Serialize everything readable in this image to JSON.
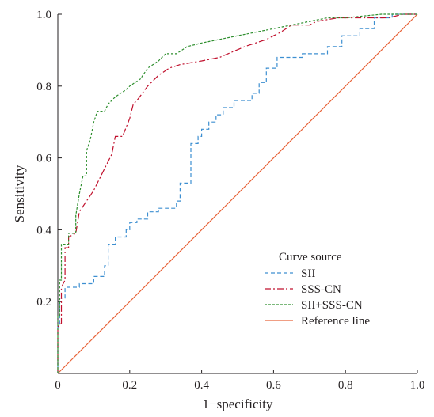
{
  "chart_data": {
    "type": "line",
    "title": "",
    "xlabel": "1−specificity",
    "ylabel": "Sensitivity",
    "xlim": [
      0,
      1
    ],
    "ylim": [
      0,
      1
    ],
    "x_ticks": [
      "0",
      "0.2",
      "0.4",
      "0.6",
      "0.8",
      "1.0"
    ],
    "y_ticks": [
      "0.2",
      "0.4",
      "0.6",
      "0.8",
      "1.0"
    ],
    "x_tick_values": [
      0,
      0.2,
      0.4,
      0.6,
      0.8,
      1.0
    ],
    "y_tick_values": [
      0.2,
      0.4,
      0.6,
      0.8,
      1.0
    ],
    "grid": false,
    "legend_title": "Curve source",
    "legend_position": "bottom-right",
    "series": [
      {
        "name": "SII",
        "color": "#3d8fd1",
        "dash": "dashed",
        "points": [
          [
            0,
            0
          ],
          [
            0,
            0.13
          ],
          [
            0.005,
            0.13
          ],
          [
            0.005,
            0.21
          ],
          [
            0.02,
            0.21
          ],
          [
            0.02,
            0.24
          ],
          [
            0.06,
            0.24
          ],
          [
            0.06,
            0.25
          ],
          [
            0.1,
            0.25
          ],
          [
            0.1,
            0.27
          ],
          [
            0.13,
            0.27
          ],
          [
            0.13,
            0.3
          ],
          [
            0.14,
            0.3
          ],
          [
            0.14,
            0.36
          ],
          [
            0.16,
            0.36
          ],
          [
            0.16,
            0.38
          ],
          [
            0.19,
            0.38
          ],
          [
            0.19,
            0.4
          ],
          [
            0.2,
            0.4
          ],
          [
            0.2,
            0.42
          ],
          [
            0.22,
            0.42
          ],
          [
            0.22,
            0.43
          ],
          [
            0.25,
            0.43
          ],
          [
            0.25,
            0.45
          ],
          [
            0.28,
            0.45
          ],
          [
            0.28,
            0.46
          ],
          [
            0.33,
            0.46
          ],
          [
            0.33,
            0.48
          ],
          [
            0.34,
            0.48
          ],
          [
            0.34,
            0.53
          ],
          [
            0.37,
            0.53
          ],
          [
            0.37,
            0.64
          ],
          [
            0.39,
            0.64
          ],
          [
            0.39,
            0.66
          ],
          [
            0.4,
            0.66
          ],
          [
            0.4,
            0.68
          ],
          [
            0.42,
            0.68
          ],
          [
            0.42,
            0.7
          ],
          [
            0.44,
            0.7
          ],
          [
            0.44,
            0.72
          ],
          [
            0.46,
            0.72
          ],
          [
            0.46,
            0.74
          ],
          [
            0.49,
            0.74
          ],
          [
            0.49,
            0.76
          ],
          [
            0.54,
            0.76
          ],
          [
            0.54,
            0.78
          ],
          [
            0.56,
            0.78
          ],
          [
            0.56,
            0.81
          ],
          [
            0.58,
            0.81
          ],
          [
            0.58,
            0.85
          ],
          [
            0.61,
            0.85
          ],
          [
            0.61,
            0.88
          ],
          [
            0.68,
            0.88
          ],
          [
            0.68,
            0.89
          ],
          [
            0.75,
            0.89
          ],
          [
            0.75,
            0.91
          ],
          [
            0.79,
            0.91
          ],
          [
            0.79,
            0.94
          ],
          [
            0.84,
            0.94
          ],
          [
            0.84,
            0.96
          ],
          [
            0.88,
            0.96
          ],
          [
            0.88,
            0.99
          ],
          [
            0.93,
            0.99
          ],
          [
            0.93,
            1.0
          ],
          [
            1.0,
            1.0
          ]
        ]
      },
      {
        "name": "SSS-CN",
        "color": "#c0102d",
        "dash": "dash-dot",
        "points": [
          [
            0,
            0
          ],
          [
            0,
            0.13
          ],
          [
            0.01,
            0.14
          ],
          [
            0.01,
            0.24
          ],
          [
            0.02,
            0.26
          ],
          [
            0.02,
            0.35
          ],
          [
            0.03,
            0.35
          ],
          [
            0.03,
            0.38
          ],
          [
            0.05,
            0.39
          ],
          [
            0.06,
            0.45
          ],
          [
            0.08,
            0.48
          ],
          [
            0.1,
            0.51
          ],
          [
            0.13,
            0.57
          ],
          [
            0.15,
            0.61
          ],
          [
            0.16,
            0.66
          ],
          [
            0.18,
            0.66
          ],
          [
            0.2,
            0.71
          ],
          [
            0.21,
            0.75
          ],
          [
            0.22,
            0.76
          ],
          [
            0.25,
            0.8
          ],
          [
            0.28,
            0.83
          ],
          [
            0.31,
            0.85
          ],
          [
            0.34,
            0.86
          ],
          [
            0.4,
            0.87
          ],
          [
            0.45,
            0.88
          ],
          [
            0.52,
            0.91
          ],
          [
            0.58,
            0.93
          ],
          [
            0.6,
            0.94
          ],
          [
            0.62,
            0.95
          ],
          [
            0.65,
            0.97
          ],
          [
            0.7,
            0.97
          ],
          [
            0.72,
            0.98
          ],
          [
            0.78,
            0.99
          ],
          [
            0.92,
            0.99
          ],
          [
            0.96,
            1.0
          ],
          [
            1.0,
            1.0
          ]
        ]
      },
      {
        "name": "SII+SSS-CN",
        "color": "#2f8f2f",
        "dash": "dotted",
        "points": [
          [
            0,
            0
          ],
          [
            0,
            0.16
          ],
          [
            0.005,
            0.16
          ],
          [
            0.005,
            0.26
          ],
          [
            0.01,
            0.26
          ],
          [
            0.01,
            0.36
          ],
          [
            0.03,
            0.36
          ],
          [
            0.03,
            0.39
          ],
          [
            0.05,
            0.39
          ],
          [
            0.05,
            0.44
          ],
          [
            0.06,
            0.5
          ],
          [
            0.07,
            0.55
          ],
          [
            0.08,
            0.55
          ],
          [
            0.08,
            0.62
          ],
          [
            0.09,
            0.65
          ],
          [
            0.1,
            0.7
          ],
          [
            0.11,
            0.73
          ],
          [
            0.13,
            0.73
          ],
          [
            0.14,
            0.75
          ],
          [
            0.16,
            0.77
          ],
          [
            0.19,
            0.79
          ],
          [
            0.2,
            0.8
          ],
          [
            0.23,
            0.82
          ],
          [
            0.25,
            0.85
          ],
          [
            0.28,
            0.87
          ],
          [
            0.3,
            0.89
          ],
          [
            0.33,
            0.89
          ],
          [
            0.36,
            0.91
          ],
          [
            0.4,
            0.92
          ],
          [
            0.45,
            0.93
          ],
          [
            0.5,
            0.94
          ],
          [
            0.55,
            0.95
          ],
          [
            0.6,
            0.96
          ],
          [
            0.65,
            0.97
          ],
          [
            0.7,
            0.98
          ],
          [
            0.75,
            0.99
          ],
          [
            0.8,
            0.99
          ],
          [
            0.9,
            1.0
          ],
          [
            1.0,
            1.0
          ]
        ]
      },
      {
        "name": "Reference line",
        "color": "#e8643a",
        "dash": "solid",
        "points": [
          [
            0,
            0
          ],
          [
            1,
            1
          ]
        ]
      }
    ]
  }
}
